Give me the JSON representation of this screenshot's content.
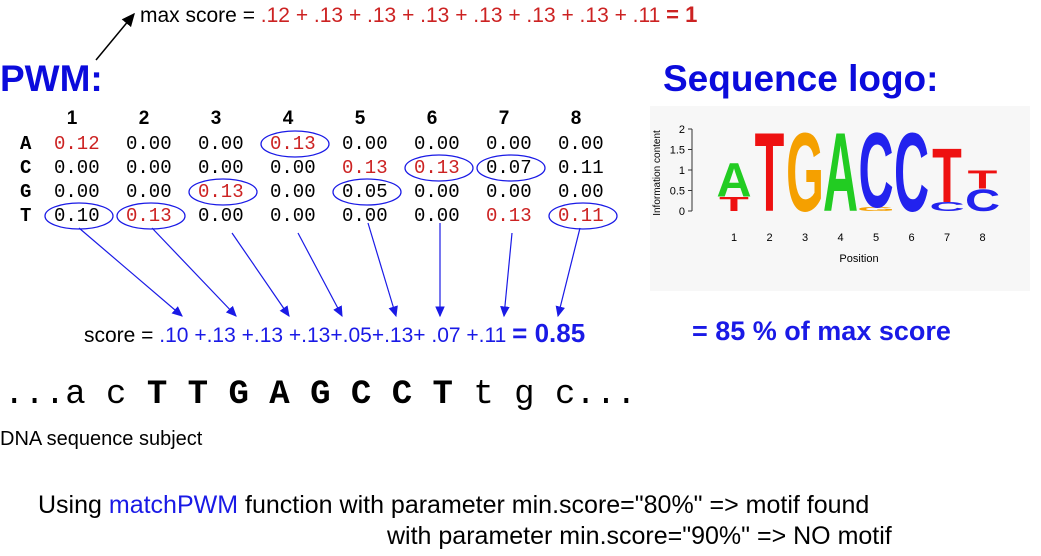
{
  "max_score": {
    "prefix": "max score = ",
    "terms": ".12 + .13 + .13 + .13 + .13 + .13 + .13 + .11",
    "total": "= 1"
  },
  "pwm": {
    "title": "PWM:",
    "columns": [
      "1",
      "2",
      "3",
      "4",
      "5",
      "6",
      "7",
      "8"
    ],
    "rows": [
      {
        "base": "A",
        "values": [
          "0.12",
          "0.00",
          "0.00",
          "0.13",
          "0.00",
          "0.00",
          "0.00",
          "0.00"
        ]
      },
      {
        "base": "C",
        "values": [
          "0.00",
          "0.00",
          "0.00",
          "0.00",
          "0.13",
          "0.13",
          "0.07",
          "0.11"
        ]
      },
      {
        "base": "G",
        "values": [
          "0.00",
          "0.00",
          "0.13",
          "0.00",
          "0.05",
          "0.00",
          "0.00",
          "0.00"
        ]
      },
      {
        "base": "T",
        "values": [
          "0.10",
          "0.13",
          "0.00",
          "0.00",
          "0.00",
          "0.00",
          "0.13",
          "0.11"
        ]
      }
    ],
    "red_cells": [
      [
        0,
        0
      ],
      [
        0,
        3
      ],
      [
        1,
        4
      ],
      [
        1,
        5
      ],
      [
        2,
        2
      ],
      [
        3,
        1
      ],
      [
        3,
        6
      ],
      [
        3,
        7
      ]
    ],
    "circled_cells": [
      [
        0,
        3
      ],
      [
        1,
        5
      ],
      [
        1,
        6
      ],
      [
        2,
        2
      ],
      [
        2,
        4
      ],
      [
        3,
        0
      ],
      [
        3,
        1
      ],
      [
        3,
        7
      ]
    ]
  },
  "logo": {
    "title": "Sequence logo:",
    "ylabel": "Information content",
    "xlabel": "Position",
    "yticks": [
      "0",
      "0.5",
      "1",
      "1.5",
      "2"
    ],
    "xticks": [
      "1",
      "2",
      "3",
      "4",
      "5",
      "6",
      "7",
      "8"
    ],
    "colors": {
      "A": "#22cc22",
      "C": "#2222ee",
      "G": "#f5a000",
      "T": "#ee1111"
    }
  },
  "score": {
    "prefix": "score = ",
    "terms": ".10 +.13 +.13 +.13+.05+.13+ .07 +.11",
    "total": "= 0.85",
    "percent": "= 85 % of max score"
  },
  "dna": {
    "lead": "...a c ",
    "motif": [
      "T",
      "T",
      "G",
      "A",
      "G",
      "C",
      "C",
      "T"
    ],
    "tail": "t g c...",
    "label": "DNA sequence subject"
  },
  "usage": {
    "line1_pre": "Using ",
    "fn": "matchPWM",
    "line1_post": " function with parameter min.score=\"80%\" => motif found",
    "line2": "with parameter min.score=\"90%\" => NO motif"
  }
}
